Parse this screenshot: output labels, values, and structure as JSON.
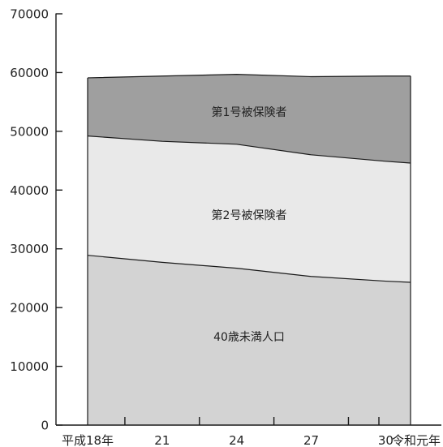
{
  "chart_data": {
    "type": "area",
    "stacked": true,
    "x": [
      "平成18年",
      "21",
      "24",
      "27",
      "30",
      "令和元年"
    ],
    "x_numeric": [
      18,
      21,
      24,
      27,
      30,
      31
    ],
    "ylim": [
      0,
      70000
    ],
    "yticks": [
      0,
      10000,
      20000,
      30000,
      40000,
      50000,
      60000,
      70000
    ],
    "grid": false,
    "legend": "none",
    "title": "",
    "xlabel": "",
    "ylabel": "",
    "series": [
      {
        "name": "40歳未満人口",
        "color": "#d3d3d3",
        "values": [
          28900,
          27700,
          26700,
          25300,
          24500,
          24300
        ]
      },
      {
        "name": "第2号被保険者",
        "color": "#e9e9e9",
        "values": [
          20300,
          20600,
          21100,
          20700,
          20400,
          20300
        ]
      },
      {
        "name": "第1号被保険者",
        "color": "#9f9f9f",
        "values": [
          9900,
          11100,
          11900,
          13300,
          14500,
          14800
        ]
      }
    ]
  }
}
